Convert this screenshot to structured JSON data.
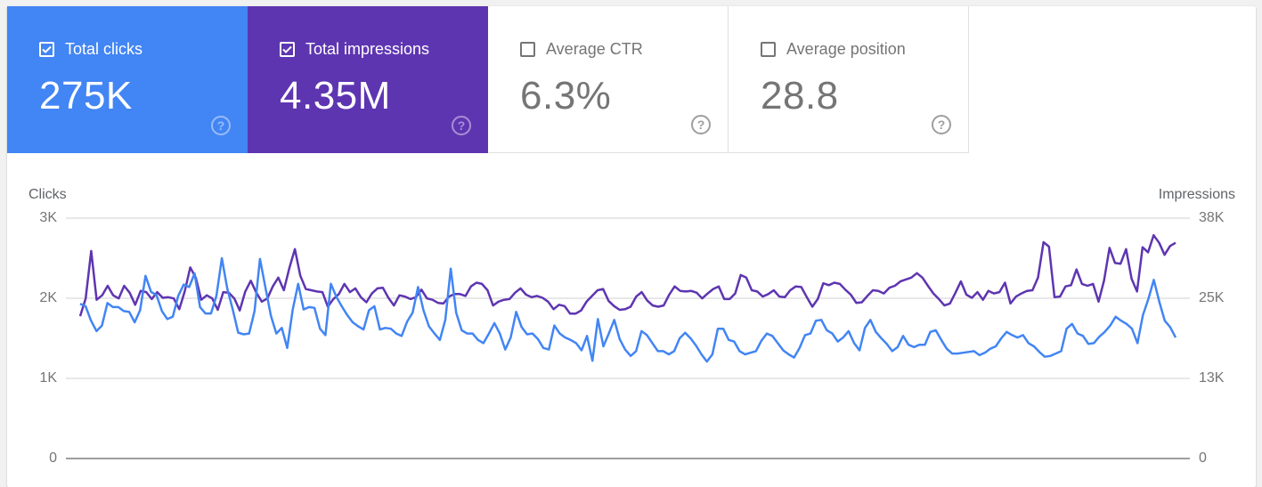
{
  "metrics": [
    {
      "label": "Total clicks",
      "value": "275K",
      "checked": true,
      "bg": "#4285f4",
      "fg": "#ffffff"
    },
    {
      "label": "Total impressions",
      "value": "4.35M",
      "checked": true,
      "bg": "#5e35b1",
      "fg": "#ffffff"
    },
    {
      "label": "Average CTR",
      "value": "6.3%",
      "checked": false,
      "bg": "#ffffff",
      "fg": "#757575"
    },
    {
      "label": "Average position",
      "value": "28.8",
      "checked": false,
      "bg": "#ffffff",
      "fg": "#757575"
    }
  ],
  "help_icon": "?",
  "chart": {
    "left_axis_title": "Clicks",
    "right_axis_title": "Impressions",
    "left_ticks": [
      "3K",
      "2K",
      "1K",
      "0"
    ],
    "right_ticks": [
      "38K",
      "25K",
      "13K",
      "0"
    ]
  },
  "chart_data": {
    "type": "line",
    "title": "",
    "xlabel": "",
    "ylabel": "Clicks",
    "y2label": "Impressions",
    "ylim": [
      0,
      3000
    ],
    "y2lim": [
      0,
      38000
    ],
    "grid": true,
    "colors": {
      "clicks": "#4285f4",
      "impressions": "#5e35b1"
    },
    "series": [
      {
        "name": "Clicks",
        "axis": "left",
        "color": "#4285f4",
        "values": [
          1930,
          1900,
          1720,
          1590,
          1660,
          1940,
          1890,
          1890,
          1840,
          1830,
          1700,
          1850,
          2280,
          2080,
          2040,
          1840,
          1740,
          1770,
          2030,
          2170,
          2140,
          2310,
          1890,
          1810,
          1810,
          2030,
          2500,
          2120,
          1860,
          1570,
          1550,
          1560,
          1840,
          2490,
          2130,
          1780,
          1560,
          1630,
          1380,
          1860,
          2180,
          1860,
          1890,
          1880,
          1620,
          1540,
          2180,
          2020,
          1900,
          1790,
          1700,
          1650,
          1610,
          1850,
          1900,
          1610,
          1630,
          1620,
          1560,
          1530,
          1710,
          1820,
          2140,
          1850,
          1650,
          1560,
          1480,
          1730,
          2370,
          1820,
          1600,
          1560,
          1560,
          1480,
          1440,
          1560,
          1690,
          1560,
          1360,
          1510,
          1830,
          1640,
          1550,
          1560,
          1490,
          1380,
          1360,
          1660,
          1560,
          1510,
          1480,
          1440,
          1350,
          1530,
          1220,
          1740,
          1400,
          1560,
          1730,
          1490,
          1360,
          1280,
          1340,
          1590,
          1540,
          1440,
          1340,
          1340,
          1300,
          1340,
          1500,
          1570,
          1500,
          1410,
          1300,
          1210,
          1300,
          1620,
          1620,
          1480,
          1460,
          1340,
          1300,
          1320,
          1340,
          1470,
          1560,
          1530,
          1440,
          1350,
          1300,
          1260,
          1380,
          1540,
          1560,
          1720,
          1730,
          1600,
          1560,
          1460,
          1510,
          1590,
          1440,
          1350,
          1630,
          1730,
          1580,
          1500,
          1430,
          1340,
          1390,
          1530,
          1420,
          1390,
          1420,
          1420,
          1580,
          1600,
          1480,
          1370,
          1310,
          1310,
          1320,
          1330,
          1340,
          1290,
          1320,
          1370,
          1400,
          1500,
          1580,
          1540,
          1510,
          1540,
          1440,
          1400,
          1330,
          1270,
          1280,
          1310,
          1340,
          1620,
          1680,
          1560,
          1530,
          1430,
          1440,
          1520,
          1580,
          1660,
          1770,
          1720,
          1680,
          1620,
          1440,
          1790,
          1990,
          2230,
          1960,
          1720,
          1640,
          1510
        ]
      },
      {
        "name": "Impressions",
        "axis": "right",
        "color": "#5e35b1",
        "values": [
          22500,
          25300,
          32800,
          25100,
          25800,
          27300,
          25800,
          25300,
          27300,
          26200,
          24300,
          26500,
          26300,
          25200,
          26300,
          25400,
          25500,
          25300,
          23600,
          26400,
          30200,
          28600,
          25100,
          25800,
          25300,
          23500,
          26300,
          26200,
          25300,
          23400,
          26400,
          28100,
          26200,
          24800,
          25300,
          27200,
          28600,
          26600,
          30100,
          33100,
          28900,
          26800,
          26600,
          26400,
          26300,
          24000,
          25200,
          26000,
          27600,
          26300,
          26900,
          25500,
          24700,
          26100,
          26900,
          27000,
          25400,
          24200,
          25800,
          25600,
          25200,
          25500,
          26700,
          25300,
          25100,
          24600,
          24500,
          25600,
          26000,
          26000,
          25700,
          27200,
          27800,
          27600,
          26600,
          24200,
          24800,
          25100,
          25200,
          26200,
          26900,
          25900,
          25500,
          25700,
          25400,
          24800,
          23600,
          24300,
          24100,
          22900,
          22900,
          23400,
          24800,
          25700,
          26600,
          26800,
          24900,
          24100,
          23500,
          23600,
          24000,
          25600,
          26300,
          25000,
          24200,
          24000,
          24200,
          25900,
          27200,
          26500,
          26400,
          26500,
          26200,
          25300,
          26100,
          26800,
          27200,
          25200,
          25200,
          26100,
          29000,
          28600,
          26600,
          26400,
          25600,
          26000,
          26600,
          25600,
          25500,
          26600,
          27200,
          27100,
          25500,
          24000,
          25200,
          27700,
          27400,
          27800,
          27600,
          26700,
          25900,
          24600,
          24700,
          25700,
          26600,
          26500,
          26100,
          27000,
          27300,
          28000,
          28300,
          28600,
          29300,
          28600,
          27300,
          26100,
          25200,
          24200,
          24500,
          26200,
          28000,
          25900,
          25400,
          26300,
          25100,
          26500,
          26100,
          26300,
          27800,
          24500,
          25600,
          26100,
          26500,
          26600,
          28600,
          34200,
          33500,
          25500,
          25600,
          27200,
          27400,
          29900,
          27600,
          27300,
          27600,
          24800,
          28100,
          33300,
          30900,
          30800,
          33100,
          28400,
          26400,
          33400,
          32600,
          35300,
          34100,
          32200,
          33600,
          34100
        ]
      }
    ]
  }
}
